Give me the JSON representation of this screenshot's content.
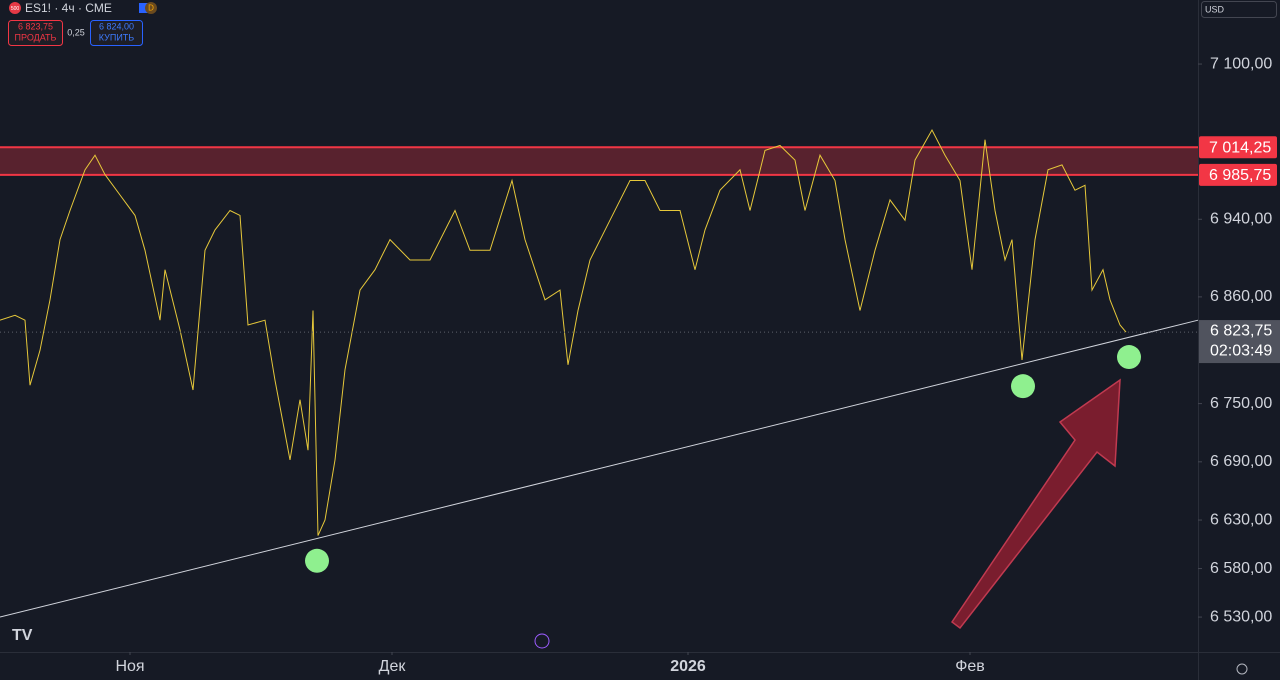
{
  "chart_data": {
    "type": "line",
    "symbol_icon": "500",
    "symbol": "ES1! · 4ч · CME",
    "interval_badge": "D",
    "sell_price": "6 823,75",
    "sell_label": "ПРОДАТЬ",
    "spread": "0,25",
    "buy_price": "6 824,00",
    "buy_label": "КУПИТЬ",
    "currency": "USD",
    "last_price_label": "6 823,75",
    "countdown": "02:03:49",
    "xlim": [
      0,
      599
    ],
    "ylim": [
      6494,
      7166
    ],
    "grid": false,
    "xticks": [
      {
        "value": 65,
        "label": "Ноя"
      },
      {
        "value": 196,
        "label": "Дек"
      },
      {
        "value": 344,
        "label": "2026"
      },
      {
        "value": 485,
        "label": "Фев"
      }
    ],
    "yticks": [
      {
        "value": 7100,
        "label": "7 100,00"
      },
      {
        "value": 6940,
        "label": "6 940,00"
      },
      {
        "value": 6860,
        "label": "6 860,00"
      },
      {
        "value": 6750,
        "label": "6 750,00"
      },
      {
        "value": 6690,
        "label": "6 690,00"
      },
      {
        "value": 6630,
        "label": "6 630,00"
      },
      {
        "value": 6580,
        "label": "6 580,00"
      },
      {
        "value": 6530,
        "label": "6 530,00"
      }
    ],
    "series": [
      {
        "color": "#e6c83a",
        "x": [
          0,
          7.5,
          12.5,
          15,
          20,
          25,
          30,
          35,
          42.5,
          47.5,
          52.5,
          60,
          67.5,
          72.5,
          80,
          82.5,
          90,
          96.5,
          102.5,
          107.5,
          115,
          120,
          124,
          132.5,
          137.5,
          145,
          150,
          154,
          156.5,
          159,
          162.5,
          167.5,
          172.5,
          180,
          187.5,
          195,
          205,
          215,
          227.5,
          235,
          245,
          256,
          262.5,
          272.5,
          280,
          284,
          289,
          295,
          305,
          315,
          322.5,
          330,
          340,
          347.5,
          352.5,
          360,
          370,
          375,
          382.5,
          390,
          397.5,
          402.5,
          410,
          417.5,
          422.5,
          430,
          437.5,
          445,
          452.5,
          457.5,
          466,
          472.5,
          480,
          486,
          492.5,
          497.5,
          502.5,
          506,
          511,
          517.5,
          524,
          531,
          537.5,
          542.5,
          546,
          551.5,
          555,
          560,
          563
        ],
        "values": [
          6836,
          6841,
          6836,
          6769,
          6805,
          6857,
          6919,
          6949,
          6991,
          7006,
          6986,
          6965,
          6944,
          6908,
          6836,
          6888,
          6826,
          6764,
          6908,
          6929,
          6949,
          6944,
          6831,
          6836,
          6774,
          6692,
          6754,
          6702,
          6846,
          6614,
          6630,
          6692,
          6785,
          6867,
          6888,
          6919,
          6898,
          6898,
          6949,
          6908,
          6908,
          6980,
          6919,
          6857,
          6867,
          6790,
          6846,
          6898,
          6939,
          6980,
          6980,
          6949,
          6949,
          6888,
          6929,
          6970,
          6991,
          6949,
          7011,
          7016,
          7001,
          6949,
          7006,
          6980,
          6919,
          6846,
          6908,
          6960,
          6939,
          7001,
          7032,
          7006,
          6980,
          6888,
          7022,
          6949,
          6898,
          6919,
          6795,
          6919,
          6991,
          6996,
          6970,
          6975,
          6867,
          6888,
          6857,
          6831,
          6823.75
        ]
      }
    ],
    "zone": {
      "values": [
        7014.25,
        6985.75
      ],
      "labels": [
        "7 014,25",
        "6 985,75"
      ],
      "color": "#f23645"
    },
    "trendline": {
      "x": [
        0,
        599
      ],
      "values": [
        6530,
        6836
      ],
      "color": "#d1d4dc"
    },
    "markers": {
      "x": [
        158.5,
        511.5,
        564.5
      ],
      "values": [
        6588,
        6768,
        6798
      ],
      "color": "#8ff08f"
    }
  }
}
